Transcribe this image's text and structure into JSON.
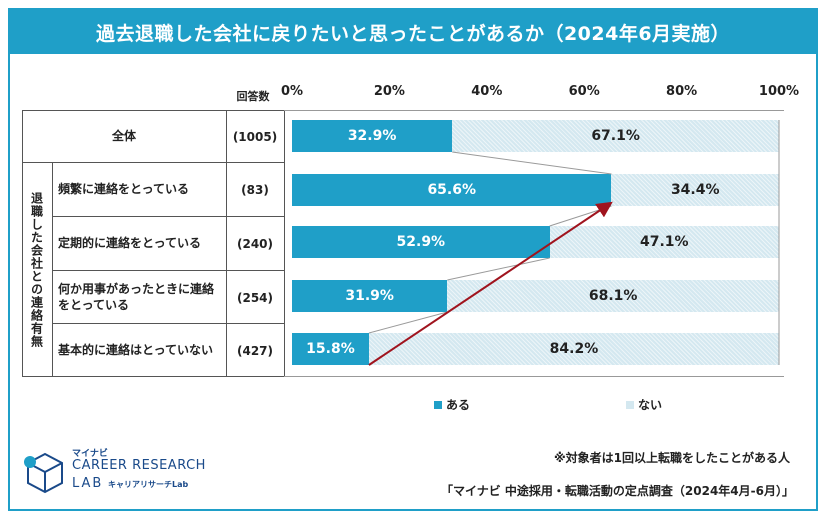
{
  "title": "過去退職した会社に戻りたいと思ったことがあるか（2024年6月実施）",
  "count_header": "回答数",
  "group_label": "退職した会社との連絡有無",
  "chart_data": {
    "type": "bar",
    "stacked": true,
    "orientation": "horizontal",
    "title": "過去退職した会社に戻りたいと思ったことがあるか（2024年6月実施）",
    "xlim": [
      0,
      100
    ],
    "ticks": [
      "0%",
      "20%",
      "40%",
      "60%",
      "80%",
      "100%"
    ],
    "categories": [
      "全体",
      "頻繁に連絡をとっている",
      "定期的に連絡をとっている",
      "何か用事があったときに連絡をとっている",
      "基本的に連絡はとっていない"
    ],
    "counts": [
      "(1005)",
      "(83)",
      "(240)",
      "(254)",
      "(427)"
    ],
    "series": [
      {
        "name": "ある",
        "values": [
          32.9,
          65.6,
          52.9,
          31.9,
          15.8
        ],
        "labels": [
          "32.9%",
          "65.6%",
          "52.9%",
          "31.9%",
          "15.8%"
        ],
        "color": "#1f9fc8"
      },
      {
        "name": "ない",
        "values": [
          67.1,
          34.4,
          47.1,
          68.1,
          84.2
        ],
        "labels": [
          "67.1%",
          "34.4%",
          "47.1%",
          "68.1%",
          "84.2%"
        ],
        "color": "#d4e8f0"
      }
    ],
    "legend": "bottom",
    "trend_arrow_color": "#a0141e"
  },
  "notes": {
    "target": "※対象者は1回以上転職をしたことがある人",
    "source": "「マイナビ 中途採用・転職活動の定点調査（2024年4月-6月）」"
  },
  "logo": {
    "brand": "マイナビ",
    "name": "CAREER RESEARCH",
    "lab": "LAB",
    "sub": "キャリアリサーチLab"
  }
}
